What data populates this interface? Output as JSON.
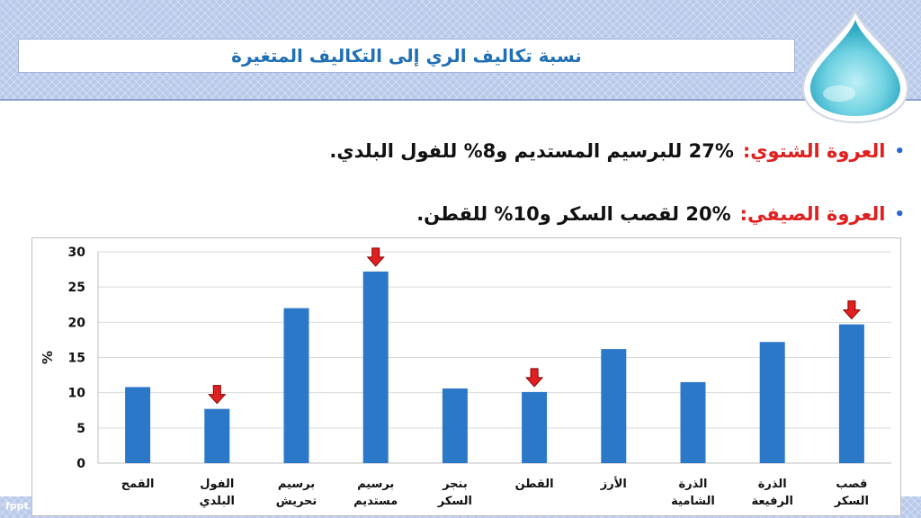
{
  "slide": {
    "title": "نسبة تكاليف الري إلى التكاليف المتغيرة",
    "footer_mark": "fppt",
    "bullets": [
      {
        "label": "العروة الشتوي:",
        "text": "27% للبرسيم المستديم و8% للفول البلدي."
      },
      {
        "label": "العروة الصيفي:",
        "text": "20% لقصب السكر و10% للقطن."
      }
    ]
  },
  "colors": {
    "bar": "#2b78c8",
    "arrow": "#e02020",
    "label_red": "#e02020",
    "title_blue": "#1f6fb5"
  },
  "chart_data": {
    "type": "bar",
    "ylabel": "%",
    "ylim": [
      0,
      30
    ],
    "yticks": [
      0,
      5,
      10,
      15,
      20,
      25,
      30
    ],
    "grid": true,
    "categories": [
      [
        "القمح"
      ],
      [
        "الفول",
        "البلدي"
      ],
      [
        "برسيم",
        "تحريش"
      ],
      [
        "برسيم",
        "مستديم"
      ],
      [
        "بنجر",
        "السكر"
      ],
      [
        "القطن"
      ],
      [
        "الأرز"
      ],
      [
        "الذرة",
        "الشامية"
      ],
      [
        "الذرة",
        "الرفيعة"
      ],
      [
        "قصب",
        "السكر"
      ]
    ],
    "values": [
      10.8,
      7.7,
      22.0,
      27.2,
      10.6,
      10.1,
      16.2,
      11.5,
      17.2,
      19.7
    ],
    "highlighted": [
      1,
      3,
      5,
      9
    ]
  }
}
